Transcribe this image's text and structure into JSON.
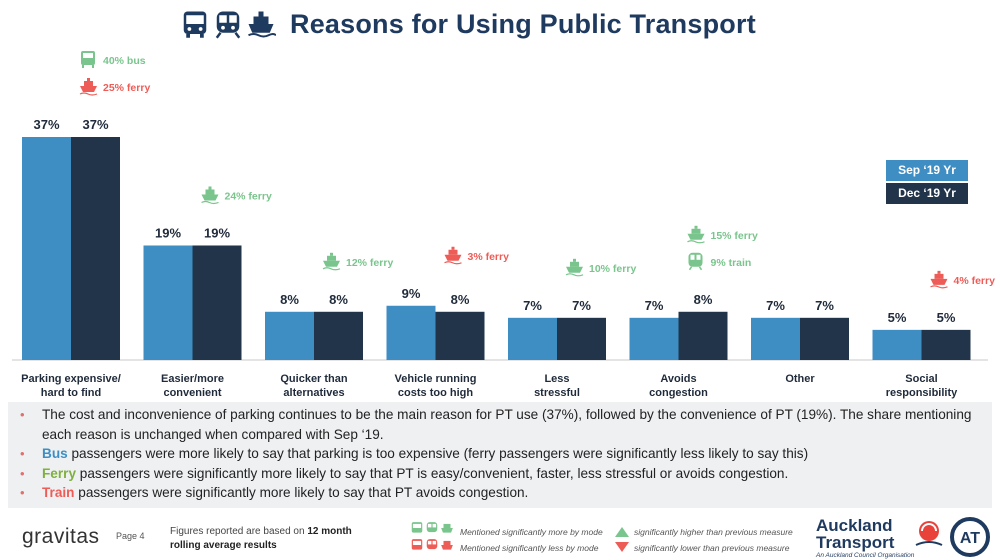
{
  "title": "Reasons for Using Public Transport",
  "colors": {
    "sep19": "#3e8ec4",
    "dec19": "#22344a",
    "more": "#7ac58d",
    "less": "#ee5c57",
    "title": "#1f3a5f"
  },
  "legend": [
    "Sep ‘19 Yr",
    "Dec ‘19 Yr"
  ],
  "chart_data": {
    "type": "bar",
    "categories": [
      [
        "Parking expensive/",
        "hard to find"
      ],
      [
        "Easier/more",
        "convenient"
      ],
      [
        "Quicker than",
        "alternatives"
      ],
      [
        "Vehicle running",
        "costs too high"
      ],
      [
        "Less",
        "stressful"
      ],
      [
        "Avoids",
        "congestion"
      ],
      [
        "Other"
      ],
      [
        "Social",
        "responsibility"
      ]
    ],
    "series": [
      {
        "name": "Sep ‘19 Yr",
        "values": [
          37,
          19,
          8,
          9,
          7,
          7,
          7,
          5
        ],
        "labels": [
          "37%",
          "19%",
          "8%",
          "9%",
          "7%",
          "7%",
          "7%",
          "5%"
        ]
      },
      {
        "name": "Dec ‘19 Yr",
        "values": [
          37,
          19,
          8,
          8,
          7,
          8,
          7,
          5
        ],
        "labels": [
          "37%",
          "19%",
          "8%",
          "8%",
          "7%",
          "8%",
          "7%",
          "5%"
        ]
      }
    ],
    "ylim": [
      0,
      37
    ],
    "annotations": [
      {
        "category": 0,
        "items": [
          {
            "mode": "bus",
            "text": "40% bus",
            "direction": "more"
          },
          {
            "mode": "ferry",
            "text": "25% ferry",
            "direction": "less"
          }
        ]
      },
      {
        "category": 1,
        "items": [
          {
            "mode": "ferry",
            "text": "24% ferry",
            "direction": "more"
          }
        ]
      },
      {
        "category": 2,
        "items": [
          {
            "mode": "ferry",
            "text": "12% ferry",
            "direction": "more"
          }
        ]
      },
      {
        "category": 3,
        "items": [
          {
            "mode": "ferry",
            "text": "3% ferry",
            "direction": "less"
          }
        ]
      },
      {
        "category": 4,
        "items": [
          {
            "mode": "ferry",
            "text": "10% ferry",
            "direction": "more"
          }
        ]
      },
      {
        "category": 5,
        "items": [
          {
            "mode": "ferry",
            "text": "15% ferry",
            "direction": "more"
          },
          {
            "mode": "train",
            "text": "9% train",
            "direction": "more"
          }
        ]
      },
      {
        "category": 7,
        "items": [
          {
            "mode": "ferry",
            "text": "4% ferry",
            "direction": "less"
          }
        ]
      }
    ]
  },
  "notes": [
    {
      "keyword": "",
      "text": "The cost and inconvenience of parking continues to be the main reason for PT use (37%), followed by the convenience of PT (19%).  The share mentioning each reason is unchanged when compared with Sep ‘19."
    },
    {
      "keyword": "Bus",
      "keyword_color": "#3e8ec4",
      "text": " passengers were more likely to say that parking is too expensive (ferry passengers were significantly less likely to say this)"
    },
    {
      "keyword": "Ferry",
      "keyword_color": "#7fb03f",
      "text": " passengers were significantly more likely to say that PT is easy/convenient, faster, less stressful or avoids congestion."
    },
    {
      "keyword": "Train",
      "keyword_color": "#ee5c57",
      "text": " passengers were significantly more likely to say that PT avoids congestion."
    }
  ],
  "footer": {
    "brand": "gravitas",
    "page": "Page 4",
    "figures_note_prefix": "Figures reported are based on ",
    "figures_note_bold": "12 month rolling average results",
    "key_more": "Mentioned significantly more by mode",
    "key_less": "Mentioned significantly less by mode",
    "sig_higher": "significantly higher than previous measure",
    "sig_lower": "significantly lower than previous measure",
    "at_name_1": "Auckland",
    "at_name_2": "Transport",
    "at_sub": "An Auckland Council Organisation",
    "at_badge": "AT"
  }
}
